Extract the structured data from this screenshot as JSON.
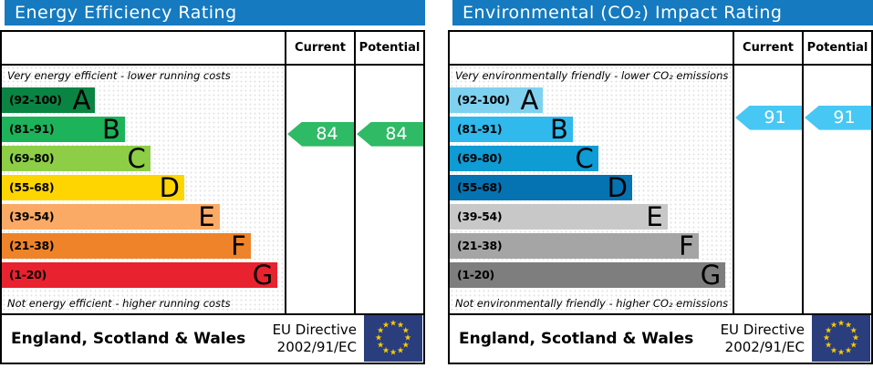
{
  "colors": {
    "header_bg": "#157abf",
    "eu_flag_bg": "#2a3d7c",
    "eu_star": "#ffcc00"
  },
  "panels": [
    {
      "title": "Energy Efficiency Rating",
      "columns": {
        "current": "Current",
        "potential": "Potential"
      },
      "top_note": "Very energy efficient - lower running costs",
      "bottom_note": "Not energy efficient - higher running costs",
      "bands": [
        {
          "range": "(92-100)",
          "letter": "A",
          "min": 92,
          "max": 100,
          "width_pct": 33,
          "color": "#0a8443"
        },
        {
          "range": "(81-91)",
          "letter": "B",
          "min": 81,
          "max": 91,
          "width_pct": 43.5,
          "color": "#1cb35b"
        },
        {
          "range": "(69-80)",
          "letter": "C",
          "min": 69,
          "max": 80,
          "width_pct": 52.5,
          "color": "#8dce46"
        },
        {
          "range": "(55-68)",
          "letter": "D",
          "min": 55,
          "max": 68,
          "width_pct": 64.5,
          "color": "#ffd500"
        },
        {
          "range": "(39-54)",
          "letter": "E",
          "min": 39,
          "max": 54,
          "width_pct": 77,
          "color": "#fbaa65"
        },
        {
          "range": "(21-38)",
          "letter": "F",
          "min": 21,
          "max": 38,
          "width_pct": 88,
          "color": "#ee8329"
        },
        {
          "range": "(1-20)",
          "letter": "G",
          "min": 1,
          "max": 20,
          "width_pct": 97.5,
          "color": "#e9222f"
        }
      ],
      "current": {
        "value": 84,
        "label": "84",
        "color": "#2fba66"
      },
      "potential": {
        "value": 84,
        "label": "84",
        "color": "#2fba66"
      },
      "footer": {
        "region": "England, Scotland & Wales",
        "directive_line1": "EU Directive",
        "directive_line2": "2002/91/EC"
      }
    },
    {
      "title": "Environmental (CO₂) Impact Rating",
      "columns": {
        "current": "Current",
        "potential": "Potential"
      },
      "top_note": "Very environmentally friendly - lower CO₂ emissions",
      "bottom_note": "Not environmentally friendly - higher CO₂ emissions",
      "bands": [
        {
          "range": "(92-100)",
          "letter": "A",
          "min": 92,
          "max": 100,
          "width_pct": 33,
          "color": "#7fd1f0"
        },
        {
          "range": "(81-91)",
          "letter": "B",
          "min": 81,
          "max": 91,
          "width_pct": 43.5,
          "color": "#2fb9ec"
        },
        {
          "range": "(69-80)",
          "letter": "C",
          "min": 69,
          "max": 80,
          "width_pct": 52.5,
          "color": "#0f9bd3"
        },
        {
          "range": "(55-68)",
          "letter": "D",
          "min": 55,
          "max": 68,
          "width_pct": 64.5,
          "color": "#0572b2"
        },
        {
          "range": "(39-54)",
          "letter": "E",
          "min": 39,
          "max": 54,
          "width_pct": 77,
          "color": "#c8c8c8"
        },
        {
          "range": "(21-38)",
          "letter": "F",
          "min": 21,
          "max": 38,
          "width_pct": 88,
          "color": "#a5a5a5"
        },
        {
          "range": "(1-20)",
          "letter": "G",
          "min": 1,
          "max": 20,
          "width_pct": 97.5,
          "color": "#7e7e7e"
        }
      ],
      "current": {
        "value": 91,
        "label": "91",
        "color": "#47c7f3"
      },
      "potential": {
        "value": 91,
        "label": "91",
        "color": "#47c7f3"
      },
      "footer": {
        "region": "England, Scotland & Wales",
        "directive_line1": "EU Directive",
        "directive_line2": "2002/91/EC"
      }
    }
  ],
  "chart_data": [
    {
      "type": "bar",
      "title": "Energy Efficiency Rating",
      "categories": [
        "A (92-100)",
        "B (81-91)",
        "C (69-80)",
        "D (55-68)",
        "E (39-54)",
        "F (21-38)",
        "G (1-20)"
      ],
      "band_ranges": [
        [
          92,
          100
        ],
        [
          81,
          91
        ],
        [
          69,
          80
        ],
        [
          55,
          68
        ],
        [
          39,
          54
        ],
        [
          21,
          38
        ],
        [
          1,
          20
        ]
      ],
      "current": 84,
      "potential": 84,
      "current_band": "B",
      "potential_band": "B",
      "footnote": "EU Directive 2002/91/EC, England, Scotland & Wales"
    },
    {
      "type": "bar",
      "title": "Environmental (CO₂) Impact Rating",
      "categories": [
        "A (92-100)",
        "B (81-91)",
        "C (69-80)",
        "D (55-68)",
        "E (39-54)",
        "F (21-38)",
        "G (1-20)"
      ],
      "band_ranges": [
        [
          92,
          100
        ],
        [
          81,
          91
        ],
        [
          69,
          80
        ],
        [
          55,
          68
        ],
        [
          39,
          54
        ],
        [
          21,
          38
        ],
        [
          1,
          20
        ]
      ],
      "current": 91,
      "potential": 91,
      "current_band": "B",
      "potential_band": "B",
      "footnote": "EU Directive 2002/91/EC, England, Scotland & Wales"
    }
  ]
}
